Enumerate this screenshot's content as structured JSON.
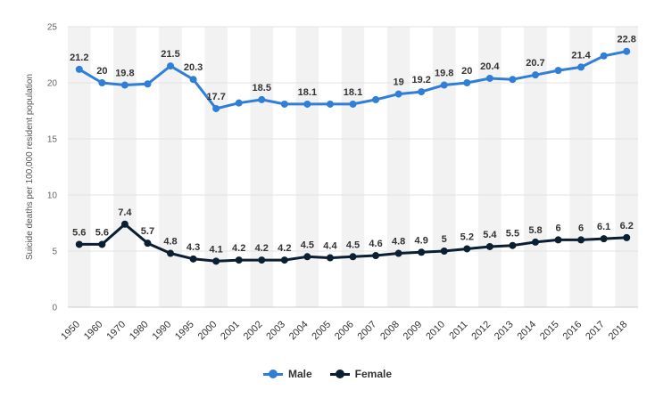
{
  "chart_data": {
    "type": "line",
    "categories": [
      "1950",
      "1960",
      "1970",
      "1980",
      "1990",
      "1995",
      "2000",
      "2001",
      "2002",
      "2003",
      "2004",
      "2005",
      "2006",
      "2007",
      "2008",
      "2009",
      "2010",
      "2011",
      "2012",
      "2013",
      "2014",
      "2015",
      "2016",
      "2017",
      "2018"
    ],
    "series": [
      {
        "name": "Male",
        "color": "#2f7ed8",
        "values": [
          21.2,
          20,
          19.8,
          19.9,
          21.5,
          20.3,
          17.7,
          18.2,
          18.5,
          18.1,
          18.1,
          18.1,
          18.1,
          18.5,
          19,
          19.2,
          19.8,
          20,
          20.4,
          20.3,
          20.7,
          21.1,
          21.4,
          22.4,
          22.8
        ],
        "labels": [
          "21.2",
          "20",
          "19.8",
          "",
          "21.5",
          "20.3",
          "17.7",
          "",
          "18.5",
          "",
          "18.1",
          "",
          "18.1",
          "",
          "19",
          "19.2",
          "19.8",
          "20",
          "20.4",
          "",
          "20.7",
          "",
          "21.4",
          "",
          "22.8"
        ]
      },
      {
        "name": "Female",
        "color": "#0b1f33",
        "values": [
          5.6,
          5.6,
          7.4,
          5.7,
          4.8,
          4.3,
          4.1,
          4.2,
          4.2,
          4.2,
          4.5,
          4.4,
          4.5,
          4.6,
          4.8,
          4.9,
          5,
          5.2,
          5.4,
          5.5,
          5.8,
          6,
          6,
          6.1,
          6.2
        ],
        "labels": [
          "5.6",
          "5.6",
          "7.4",
          "5.7",
          "4.8",
          "4.3",
          "4.1",
          "4.2",
          "4.2",
          "4.2",
          "4.5",
          "4.4",
          "4.5",
          "4.6",
          "4.8",
          "4.9",
          "5",
          "5.2",
          "5.4",
          "5.5",
          "5.8",
          "6",
          "6",
          "6.1",
          "6.2"
        ]
      }
    ],
    "ylabel": "Suicide deaths per 100,000 resident population",
    "xlabel": "",
    "ylim": [
      0,
      25
    ],
    "yticks": [
      "0",
      "5",
      "10",
      "15",
      "20",
      "25"
    ],
    "grid": true,
    "legend_position": "bottom-center"
  },
  "legend": {
    "items": [
      {
        "label": "Male",
        "color": "#2f7ed8"
      },
      {
        "label": "Female",
        "color": "#0b1f33"
      }
    ]
  }
}
